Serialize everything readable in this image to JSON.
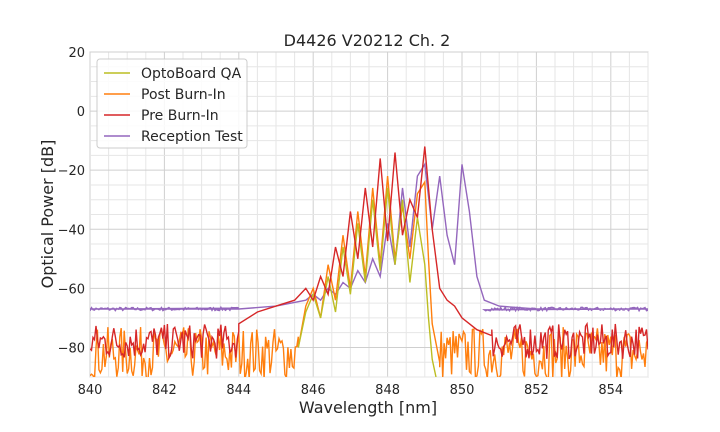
{
  "chart_data": {
    "type": "line",
    "title": "D4426 V20212 Ch. 2",
    "xlabel": "Wavelength [nm]",
    "ylabel": "Optical Power [dB]",
    "xlim": [
      840,
      855
    ],
    "ylim": [
      -90,
      20
    ],
    "xticks": [
      840,
      842,
      844,
      846,
      848,
      850,
      852,
      854
    ],
    "yticks": [
      20,
      0,
      -20,
      -40,
      -60,
      -80
    ],
    "xtick_labels": [
      "840",
      "842",
      "844",
      "846",
      "848",
      "850",
      "852",
      "854"
    ],
    "ytick_labels": [
      "20",
      "0",
      "−20",
      "−40",
      "−60",
      "−80"
    ],
    "grid": true,
    "legend_position": "top-left",
    "series": [
      {
        "name": "OptoBoard QA",
        "color": "#bcbd22",
        "noise_floor": "below -90 (off-scale) outside 845.6–849.3",
        "x": [
          845.6,
          845.8,
          846.0,
          846.2,
          846.4,
          846.6,
          846.8,
          847.0,
          847.2,
          847.4,
          847.6,
          847.8,
          848.0,
          848.2,
          848.4,
          848.6,
          848.8,
          849.0,
          849.1,
          849.2,
          849.3
        ],
        "y": [
          -80,
          -68,
          -62,
          -70,
          -56,
          -68,
          -46,
          -62,
          -38,
          -58,
          -30,
          -54,
          -26,
          -52,
          -30,
          -58,
          -36,
          -52,
          -70,
          -84,
          -90
        ]
      },
      {
        "name": "Post Burn-In",
        "color": "#ff7f0e",
        "noise_floor": "approx -82 ± 8 dB outside 845.6–849.4",
        "x": [
          845.6,
          845.8,
          846.0,
          846.2,
          846.4,
          846.6,
          846.8,
          847.0,
          847.2,
          847.4,
          847.6,
          847.8,
          848.0,
          848.2,
          848.4,
          848.6,
          848.8,
          849.0,
          849.1,
          849.2,
          849.4
        ],
        "y": [
          -80,
          -66,
          -60,
          -70,
          -52,
          -64,
          -42,
          -60,
          -34,
          -56,
          -26,
          -52,
          -22,
          -50,
          -32,
          -50,
          -28,
          -24,
          -50,
          -72,
          -85
        ]
      },
      {
        "name": "Pre Burn-In",
        "color": "#d62728",
        "noise_floor": "approx -78 ± 6 dB outside 844.0–850.8",
        "x": [
          844.0,
          844.5,
          845.0,
          845.5,
          845.8,
          846.0,
          846.2,
          846.4,
          846.6,
          846.8,
          847.0,
          847.2,
          847.4,
          847.6,
          847.8,
          848.0,
          848.2,
          848.4,
          848.6,
          848.8,
          849.0,
          849.2,
          849.4,
          849.6,
          849.8,
          850.0,
          850.4,
          850.8
        ],
        "y": [
          -72,
          -68,
          -66,
          -64,
          -60,
          -64,
          -56,
          -62,
          -46,
          -56,
          -34,
          -50,
          -26,
          -46,
          -16,
          -44,
          -14,
          -42,
          -30,
          -36,
          -12,
          -40,
          -60,
          -64,
          -66,
          -70,
          -74,
          -76
        ]
      },
      {
        "name": "Reception Test",
        "color": "#9467bd",
        "noise_floor": "approx -67 dB outside 844.0–850.6",
        "x": [
          840.0,
          842.0,
          844.0,
          845.0,
          845.8,
          846.0,
          846.2,
          846.4,
          846.6,
          846.8,
          847.0,
          847.2,
          847.4,
          847.6,
          847.8,
          848.0,
          848.2,
          848.4,
          848.6,
          848.8,
          849.0,
          849.2,
          849.4,
          849.6,
          849.8,
          850.0,
          850.2,
          850.4,
          850.6,
          851.0,
          852.0,
          853.0,
          854.0,
          855.0
        ],
        "y": [
          -67,
          -67,
          -67,
          -66,
          -64,
          -62,
          -64,
          -60,
          -62,
          -58,
          -60,
          -54,
          -58,
          -50,
          -56,
          -38,
          -52,
          -26,
          -46,
          -22,
          -18,
          -40,
          -22,
          -42,
          -52,
          -18,
          -34,
          -56,
          -64,
          -66,
          -67,
          -67,
          -67,
          -67
        ]
      }
    ]
  }
}
